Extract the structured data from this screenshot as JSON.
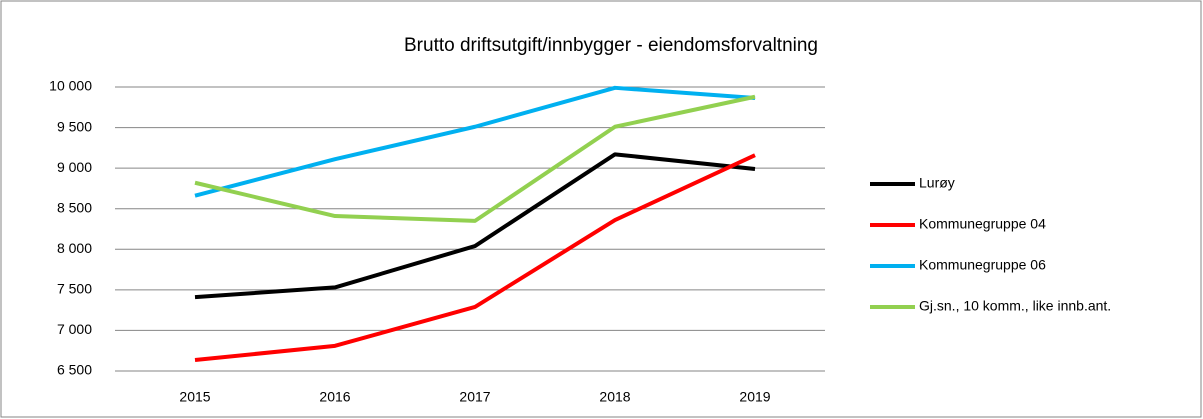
{
  "chart_data": {
    "type": "line",
    "title": "Brutto driftsutgift/innbygger - eiendomsforvaltning",
    "categories": [
      "2015",
      "2016",
      "2017",
      "2018",
      "2019"
    ],
    "series": [
      {
        "name": "Lurøy",
        "color": "#000000",
        "values": [
          7410,
          7530,
          8040,
          9170,
          8990
        ]
      },
      {
        "name": "Kommunegruppe 04",
        "color": "#ff0000",
        "values": [
          6635,
          6810,
          7290,
          8360,
          9160
        ]
      },
      {
        "name": "Kommunegruppe 06",
        "color": "#00b0f0",
        "values": [
          8660,
          9110,
          9510,
          9990,
          9865
        ]
      },
      {
        "name": "Gj.sn., 10 komm., like innb.ant.",
        "color": "#92d050",
        "values": [
          8820,
          8410,
          8350,
          9510,
          9880
        ]
      }
    ],
    "ylim": [
      6500,
      10000
    ],
    "yticks": [
      {
        "value": 6500,
        "label": "6 500"
      },
      {
        "value": 7000,
        "label": "7 000"
      },
      {
        "value": 7500,
        "label": "7 500"
      },
      {
        "value": 8000,
        "label": "8 000"
      },
      {
        "value": 8500,
        "label": "8 500"
      },
      {
        "value": 9000,
        "label": "9 000"
      },
      {
        "value": 9500,
        "label": "9 500"
      },
      {
        "value": 10000,
        "label": "10 000"
      }
    ],
    "grid": true,
    "legend": "right"
  }
}
